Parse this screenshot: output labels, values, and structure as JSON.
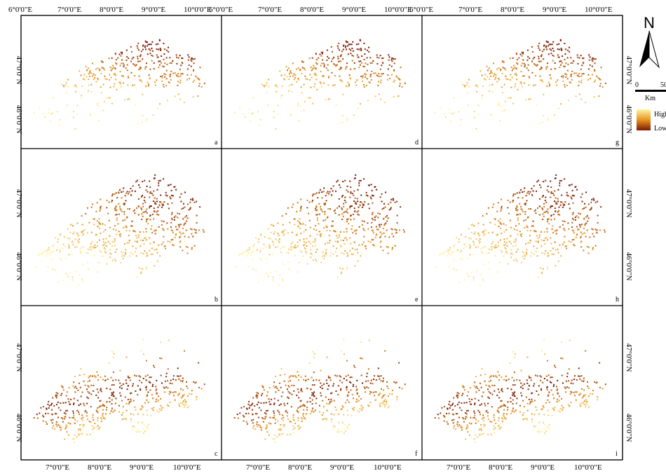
{
  "figure": {
    "top_longitude_labels": [
      "6°0'0\"E",
      "7°0'0\"E",
      "8°0'0\"E",
      "9°0'0\"E",
      "10°0'0\"E"
    ],
    "bottom_longitude_labels": [
      "7°0'0\"E",
      "8°0'0\"E",
      "9°0'0\"E",
      "10°0'0\"E"
    ],
    "latitude_labels": [
      "47°0'0\"N",
      "46°0'0\"N"
    ],
    "panels": [
      {
        "letter": "a",
        "pattern": "north"
      },
      {
        "letter": "d",
        "pattern": "north"
      },
      {
        "letter": "g",
        "pattern": "north"
      },
      {
        "letter": "b",
        "pattern": "central"
      },
      {
        "letter": "e",
        "pattern": "central"
      },
      {
        "letter": "h",
        "pattern": "central"
      },
      {
        "letter": "c",
        "pattern": "alpine"
      },
      {
        "letter": "f",
        "pattern": "alpine"
      },
      {
        "letter": "i",
        "pattern": "alpine"
      }
    ]
  },
  "north_arrow": {
    "label": "N"
  },
  "scale_bar": {
    "start": "0",
    "end": "50",
    "unit": "Km"
  },
  "legend": {
    "high_label": "High",
    "low_label": "Low",
    "high_color": "#fff4a8",
    "mid_color": "#e8951f",
    "low_color": "#7a1a06"
  }
}
